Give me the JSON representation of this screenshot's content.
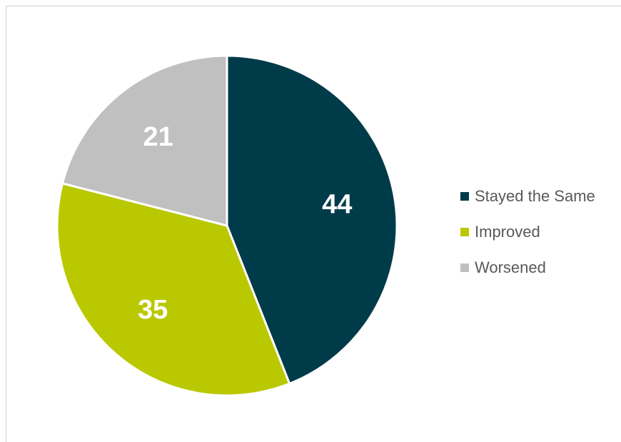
{
  "chart_data": {
    "type": "pie",
    "categories": [
      "Stayed the Same",
      "Improved",
      "Worsened"
    ],
    "values": [
      44,
      35,
      21
    ],
    "data_labels": [
      "44",
      "35",
      "21"
    ],
    "colors": [
      "#003b4a",
      "#bac800",
      "#c0c0c0"
    ],
    "start_angle": "12 o'clock, clockwise",
    "legend_position": "right",
    "title": ""
  }
}
